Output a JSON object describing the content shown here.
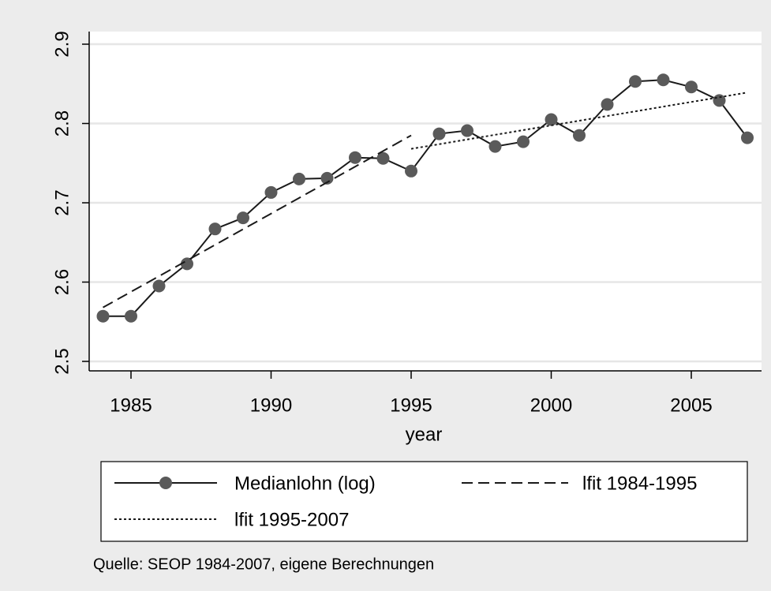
{
  "chart_data": {
    "type": "line",
    "xlabel": "year",
    "note": "Quelle: SEOP 1984-2007, eigene Berechnungen",
    "x": [
      1984,
      1985,
      1986,
      1987,
      1988,
      1989,
      1990,
      1991,
      1992,
      1993,
      1994,
      1995,
      1996,
      1997,
      1998,
      1999,
      2000,
      2001,
      2002,
      2003,
      2004,
      2005,
      2006,
      2007
    ],
    "series": [
      {
        "name": "Medianlohn (log)",
        "color": "#1a1a1a",
        "marker_color": "#5a5a5a",
        "style": "solid",
        "values": [
          2.557,
          2.557,
          2.595,
          2.623,
          2.667,
          2.681,
          2.713,
          2.73,
          2.731,
          2.757,
          2.756,
          2.74,
          2.787,
          2.791,
          2.771,
          2.777,
          2.805,
          2.785,
          2.824,
          2.853,
          2.855,
          2.846,
          2.829,
          2.782
        ]
      },
      {
        "name": "lfit 1984-1995",
        "color": "#1a1a1a",
        "style": "dashed",
        "x": [
          1984,
          1995
        ],
        "values": [
          2.568,
          2.785
        ]
      },
      {
        "name": "lfit 1995-2007",
        "color": "#1a1a1a",
        "style": "dotted",
        "x": [
          1995,
          2007
        ],
        "values": [
          2.768,
          2.839
        ]
      }
    ],
    "xlim": [
      1984,
      2007
    ],
    "xticks": [
      1985,
      1990,
      1995,
      2000,
      2005
    ],
    "ylim": [
      2.5,
      2.9
    ],
    "yticks": [
      2.5,
      2.6,
      2.7,
      2.8,
      2.9
    ],
    "grid": true
  }
}
